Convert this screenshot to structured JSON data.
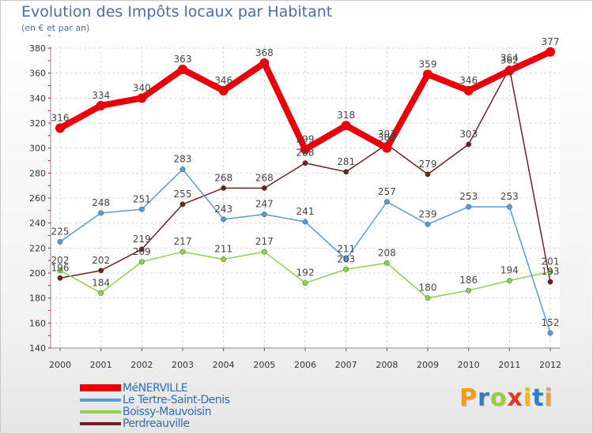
{
  "header": {
    "title": "Evolution des Impôts locaux par Habitant",
    "subtitle": "(en € et par an)"
  },
  "brand": {
    "letters": [
      "P",
      "r",
      "o",
      "x",
      "i",
      "t",
      "i"
    ],
    "colors": [
      "#f39a1e",
      "#2e7fc1",
      "#9bcb3b",
      "#e03a2a",
      "#f3b41e",
      "#2e7fc1",
      "#e9a23b"
    ]
  },
  "chart_data": {
    "type": "line",
    "title": "Evolution des Impôts locaux par Habitant",
    "subtitle": "(en € et par an)",
    "x": [
      2000,
      2001,
      2002,
      2003,
      2004,
      2005,
      2006,
      2007,
      2008,
      2009,
      2010,
      2011,
      2012
    ],
    "ylim": [
      140,
      380
    ],
    "yticks": [
      140,
      160,
      180,
      200,
      220,
      240,
      260,
      280,
      300,
      320,
      340,
      360,
      380
    ],
    "grid": true,
    "legend_placement": "bottom-left",
    "series": [
      {
        "name": "MéNERVILLE",
        "color": "#e8000b",
        "values": [
          316,
          334,
          340,
          363,
          346,
          368,
          299,
          318,
          300,
          359,
          346,
          362,
          377
        ]
      },
      {
        "name": "Le Tertre-Saint-Denis",
        "color": "#5b9bd5",
        "values": [
          225,
          248,
          251,
          283,
          243,
          247,
          241,
          211,
          257,
          239,
          253,
          253,
          152
        ]
      },
      {
        "name": "Boissy-Mauvoisin",
        "color": "#8fd14f",
        "values": [
          202,
          184,
          209,
          217,
          211,
          217,
          192,
          203,
          208,
          180,
          186,
          194,
          201
        ]
      },
      {
        "name": "Perdreauville",
        "color": "#6e2121",
        "values": [
          196,
          202,
          219,
          255,
          268,
          268,
          288,
          281,
          303,
          279,
          303,
          364,
          193
        ]
      }
    ]
  }
}
